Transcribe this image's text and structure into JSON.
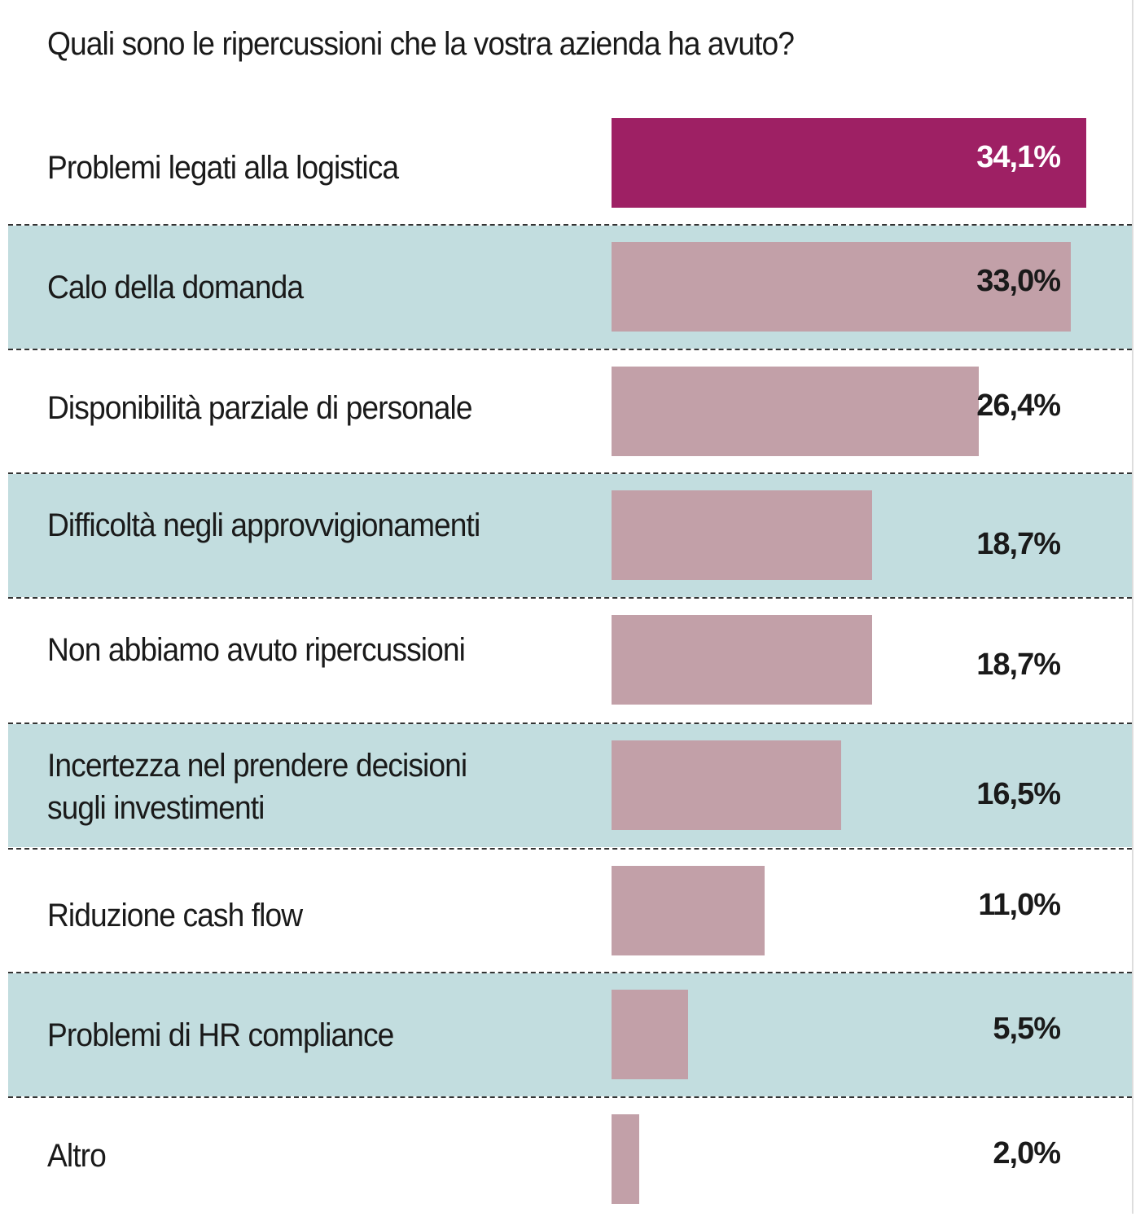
{
  "chart_data": {
    "type": "bar",
    "orientation": "horizontal",
    "title": "Quali sono le ripercussioni che la vostra azienda ha avuto?",
    "categories": [
      "Problemi legati alla logistica",
      "Calo della domanda",
      "Disponibilità parziale di personale",
      "Difficoltà negli approvvigionamenti",
      "Non abbiamo avuto ripercussioni",
      "Incertezza nel prendere decisioni\nsugli investimenti",
      "Riduzione cash flow",
      "Problemi di HR compliance",
      "Altro"
    ],
    "values": [
      34.1,
      33.0,
      26.4,
      18.7,
      18.7,
      16.5,
      11.0,
      5.5,
      2.0
    ],
    "value_labels": [
      "34,1%",
      "33,0%",
      "26,4%",
      "18,7%",
      "18,7%",
      "16,5%",
      "11,0%",
      "5,5%",
      "2,0%"
    ],
    "unit": "%",
    "grid": false,
    "colors": {
      "highlight": "#9E2064",
      "bar": "#C2A0A8",
      "band": "#C2DDDF",
      "text": "#1a1a1a"
    }
  }
}
